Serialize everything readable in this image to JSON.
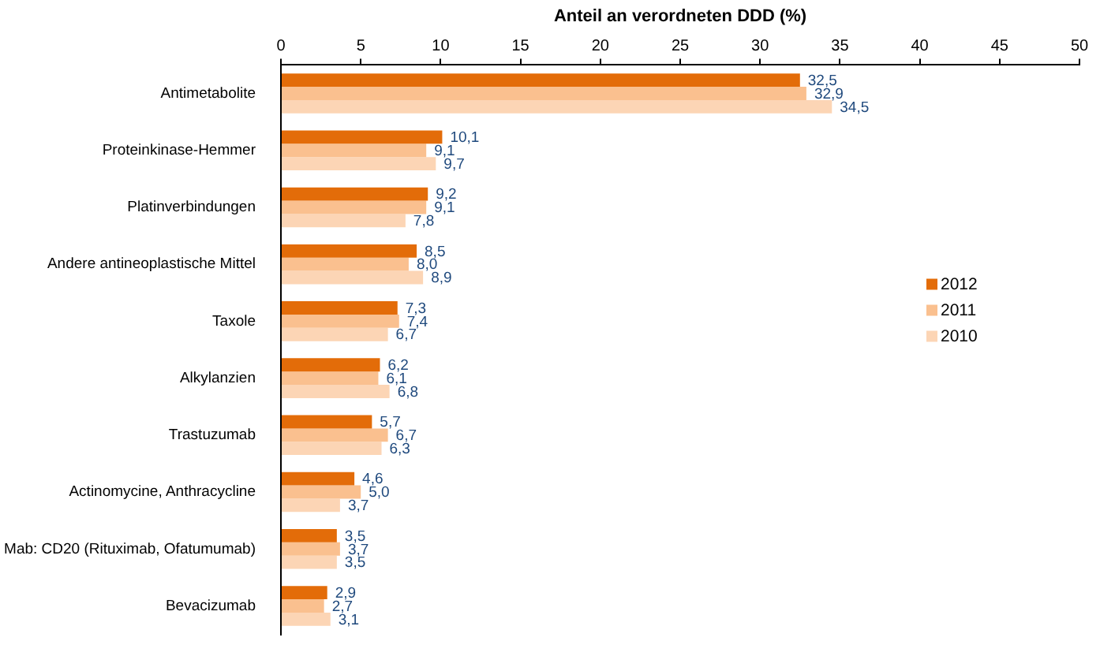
{
  "chart_data": {
    "type": "bar",
    "orientation": "horizontal",
    "xlabel": "Anteil an verordneten DDD (%)",
    "categories": [
      "Antimetabolite",
      "Proteinkinase-Hemmer",
      "Platinverbindungen",
      "Andere antineoplastische Mittel",
      "Taxole",
      "Alkylanzien",
      "Trastuzumab",
      "Actinomycine, Anthracycline",
      "Mab: CD20 (Rituximab, Ofatumumab)",
      "Bevacizumab"
    ],
    "series": [
      {
        "name": "2012",
        "color": "#e36c09",
        "values": [
          32.5,
          10.1,
          9.2,
          8.5,
          7.3,
          6.2,
          5.7,
          4.6,
          3.5,
          2.9
        ],
        "value_labels": [
          "32,5",
          "10,1",
          "9,2",
          "8,5",
          "7,3",
          "6,2",
          "5,7",
          "4,6",
          "3,5",
          "2,9"
        ]
      },
      {
        "name": "2011",
        "color": "#fac08f",
        "values": [
          32.9,
          9.1,
          9.1,
          8.0,
          7.4,
          6.1,
          6.7,
          5.0,
          3.7,
          2.7
        ],
        "value_labels": [
          "32,9",
          "9,1",
          "9,1",
          "8,0",
          "7,4",
          "6,1",
          "6,7",
          "5,0",
          "3,7",
          "2,7"
        ]
      },
      {
        "name": "2010",
        "color": "#fcd5b5",
        "values": [
          34.5,
          9.7,
          7.8,
          8.9,
          6.7,
          6.8,
          6.3,
          3.7,
          3.5,
          3.1
        ],
        "value_labels": [
          "34,5",
          "9,7",
          "7,8",
          "8,9",
          "6,7",
          "6,8",
          "6,3",
          "3,7",
          "3,5",
          "3,1"
        ]
      }
    ],
    "xlim": [
      0,
      50
    ],
    "xticks": [
      0,
      5,
      10,
      15,
      20,
      25,
      30,
      35,
      40,
      45,
      50
    ],
    "legend": "right"
  }
}
